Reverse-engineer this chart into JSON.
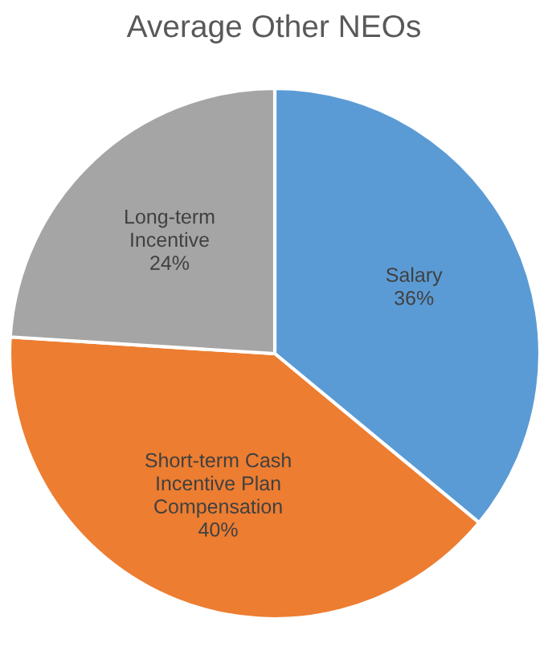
{
  "chart_data": {
    "type": "pie",
    "title": "Average Other NEOs",
    "categories": [
      "Salary",
      "Short-term Cash\nIncentive Plan\nCompensation",
      "Long-term\nIncentive"
    ],
    "values": [
      36,
      40,
      24
    ],
    "colors": [
      "#5b9bd5",
      "#ed7d31",
      "#a5a5a5"
    ],
    "value_labels": [
      "36%",
      "40%",
      "24%"
    ]
  }
}
